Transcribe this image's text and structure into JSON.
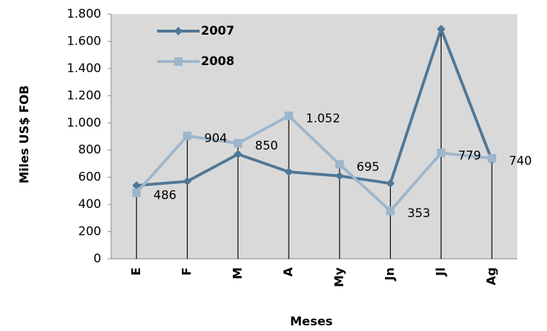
{
  "chart_data": {
    "type": "line",
    "x_label": "Meses",
    "y_label": "Miles US$ FOB",
    "categories": [
      "E",
      "F",
      "M",
      "A",
      "My",
      "Jn",
      "Jl",
      "Ag"
    ],
    "series": [
      {
        "name": "2007",
        "color": "#4f7796",
        "marker": "diamond",
        "values": [
          540,
          570,
          770,
          640,
          610,
          555,
          1690,
          725
        ]
      },
      {
        "name": "2008",
        "color": "#9db6cc",
        "marker": "square",
        "values": [
          486,
          904,
          850,
          1052,
          695,
          353,
          779,
          740
        ],
        "value_labels": [
          "486",
          "904",
          "850",
          "1.052",
          "695",
          "353",
          "779",
          "740"
        ]
      }
    ],
    "ylim": [
      0,
      1800
    ],
    "yticks": [
      0,
      200,
      400,
      600,
      800,
      {
        "value": 1000,
        "label": "1.000"
      },
      {
        "value": 1200,
        "label": "1.200"
      },
      {
        "value": 1400,
        "label": "1.400"
      },
      {
        "value": 1600,
        "label": "1.600"
      },
      {
        "value": 1800,
        "label": "1.800"
      }
    ],
    "drop_lines": true,
    "legend": "top-left"
  }
}
